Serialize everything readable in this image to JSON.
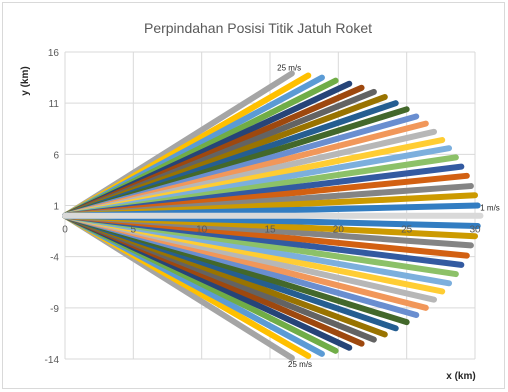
{
  "chart_data": {
    "type": "line",
    "title": "Perpindahan Posisi Titik Jatuh Roket",
    "xlabel": "x (km)",
    "ylabel": "y (km)",
    "xlim": [
      0,
      30
    ],
    "ylim": [
      -14,
      16
    ],
    "x_ticks": [
      0,
      5,
      10,
      15,
      20,
      25,
      30
    ],
    "y_ticks": [
      16,
      11,
      6,
      1,
      -4,
      -9,
      -14
    ],
    "grid": true,
    "legend": "none",
    "annotations": [
      {
        "text": "25 m/s",
        "x": 16.4,
        "y": 14.2
      },
      {
        "text": "25 m/s",
        "x": 17.2,
        "y": -14.8
      },
      {
        "text": "1 m/s",
        "x": 31.1,
        "y": 0.5
      }
    ],
    "origin": [
      0,
      0
    ],
    "series": [
      {
        "endpoints": [
          [
            16.6,
            13.9
          ],
          [
            16.6,
            -13.9
          ]
        ]
      },
      {
        "endpoints": [
          [
            17.8,
            13.7
          ],
          [
            17.8,
            -13.7
          ]
        ]
      },
      {
        "endpoints": [
          [
            18.8,
            13.5
          ],
          [
            18.8,
            -13.5
          ]
        ]
      },
      {
        "endpoints": [
          [
            19.8,
            13.2
          ],
          [
            19.8,
            -13.2
          ]
        ]
      },
      {
        "endpoints": [
          [
            20.8,
            12.9
          ],
          [
            20.8,
            -12.9
          ]
        ]
      },
      {
        "endpoints": [
          [
            21.7,
            12.5
          ],
          [
            21.7,
            -12.5
          ]
        ]
      },
      {
        "endpoints": [
          [
            22.6,
            12.1
          ],
          [
            22.6,
            -12.1
          ]
        ]
      },
      {
        "endpoints": [
          [
            23.4,
            11.6
          ],
          [
            23.4,
            -11.6
          ]
        ]
      },
      {
        "endpoints": [
          [
            24.2,
            11.0
          ],
          [
            24.2,
            -11.0
          ]
        ]
      },
      {
        "endpoints": [
          [
            25.0,
            10.4
          ],
          [
            25.0,
            -10.4
          ]
        ]
      },
      {
        "endpoints": [
          [
            25.7,
            9.7
          ],
          [
            25.7,
            -9.7
          ]
        ]
      },
      {
        "endpoints": [
          [
            26.4,
            9.0
          ],
          [
            26.4,
            -9.0
          ]
        ]
      },
      {
        "endpoints": [
          [
            27.0,
            8.2
          ],
          [
            27.0,
            -8.2
          ]
        ]
      },
      {
        "endpoints": [
          [
            27.6,
            7.4
          ],
          [
            27.6,
            -7.4
          ]
        ]
      },
      {
        "endpoints": [
          [
            28.1,
            6.6
          ],
          [
            28.1,
            -6.6
          ]
        ]
      },
      {
        "endpoints": [
          [
            28.6,
            5.7
          ],
          [
            28.6,
            -5.7
          ]
        ]
      },
      {
        "endpoints": [
          [
            29.0,
            4.8
          ],
          [
            29.0,
            -4.8
          ]
        ]
      },
      {
        "endpoints": [
          [
            29.4,
            3.9
          ],
          [
            29.4,
            -3.9
          ]
        ]
      },
      {
        "endpoints": [
          [
            29.7,
            2.9
          ],
          [
            29.7,
            -2.9
          ]
        ]
      },
      {
        "endpoints": [
          [
            30.0,
            2.0
          ],
          [
            30.0,
            -2.0
          ]
        ]
      },
      {
        "endpoints": [
          [
            30.2,
            1.0
          ],
          [
            30.2,
            -1.0
          ]
        ]
      },
      {
        "endpoints": [
          [
            30.4,
            0.0
          ]
        ]
      }
    ]
  },
  "colors": {
    "palette": [
      "#a5a5a5",
      "#ffc000",
      "#5b9bd5",
      "#70ad47",
      "#264478",
      "#9e480e",
      "#636363",
      "#997300",
      "#255e91",
      "#43682b",
      "#698ed0",
      "#f1975a",
      "#b7b7b7",
      "#ffcd33",
      "#7cafdd",
      "#8cc168",
      "#335aa1",
      "#d26012",
      "#848484",
      "#cc9a00",
      "#327dc2",
      "#5a8a39"
    ],
    "final_line": "#d9d9d9",
    "grid": "#d9d9d9",
    "text": "#595959",
    "title": "#595959"
  }
}
